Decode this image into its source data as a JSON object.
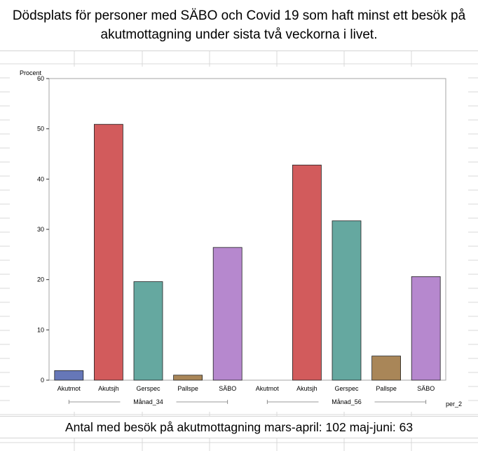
{
  "title_line1": "Dödsplats för personer med SÄBO och Covid 19 som haft minst ett besök på",
  "title_line2": "akutmottagning under sista två veckorna i livet.",
  "footer": "Antal med besök på akutmottagning mars-april: 102 maj-juni: 63",
  "chart_data": {
    "type": "bar",
    "ylabel": "Procent",
    "ylim": [
      0,
      60
    ],
    "yticks": [
      0,
      10,
      20,
      30,
      40,
      50,
      60
    ],
    "group_axis_label": "per_2",
    "groups": [
      {
        "name": "Månad_34",
        "categories": [
          "Akutmot",
          "Akutsjh",
          "Gerspec",
          "Pallspe",
          "SÄBO"
        ],
        "values": [
          1.9,
          50.9,
          19.6,
          1.0,
          26.4
        ]
      },
      {
        "name": "Månad_56",
        "categories": [
          "Akutmot",
          "Akutsjh",
          "Gerspec",
          "Pallspe",
          "SÄBO"
        ],
        "values": [
          0,
          42.8,
          31.7,
          4.8,
          20.6
        ]
      }
    ],
    "category_colors": {
      "Akutmot": "#6677b8",
      "Akutsjh": "#d25b5c",
      "Gerspec": "#65a8a0",
      "Pallspe": "#a98658",
      "SÄBO": "#b688ce"
    },
    "grid": false
  }
}
